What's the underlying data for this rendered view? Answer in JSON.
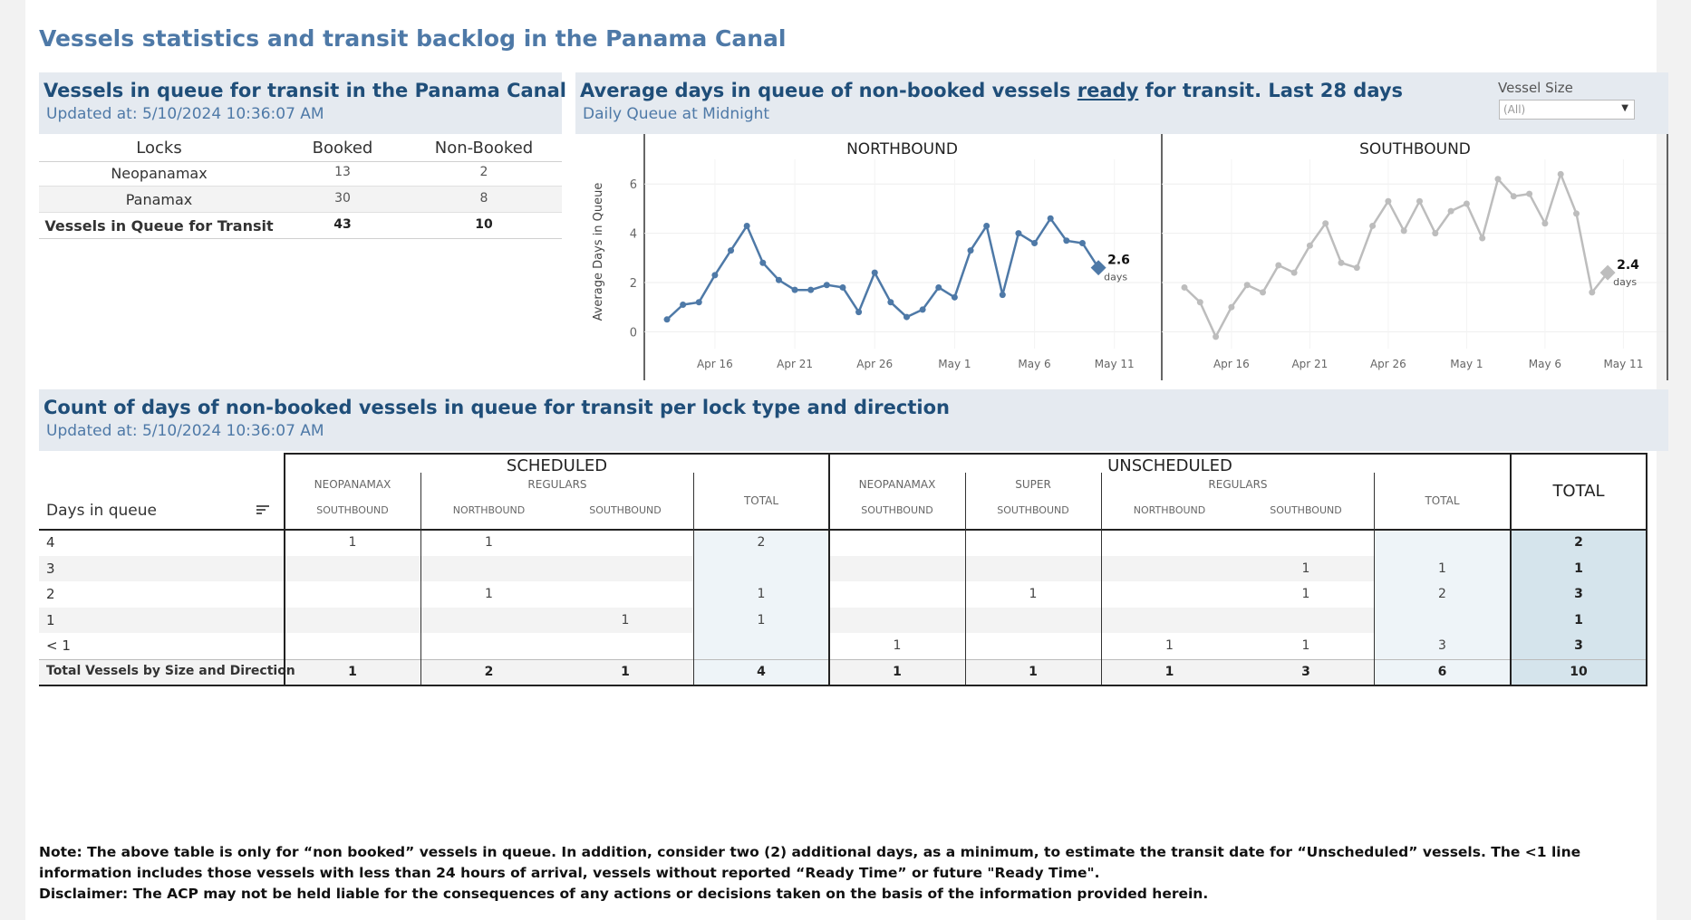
{
  "page_title": "Vessels statistics and transit backlog in the Panama Canal",
  "queue_panel": {
    "title": "Vessels in queue for transit in the Panama Canal",
    "updated_label": "Updated at:  5/10/2024 10:36:07 AM",
    "headers": [
      "Locks",
      "Booked",
      "Non-Booked"
    ],
    "rows": [
      {
        "lock": "Neopanamax",
        "booked": "13",
        "nonbooked": "2"
      },
      {
        "lock": "Panamax",
        "booked": "30",
        "nonbooked": "8"
      },
      {
        "lock": "Vessels in Queue for Transit",
        "booked": "43",
        "nonbooked": "10"
      }
    ]
  },
  "avg_panel": {
    "title_pre": "Average days in queue of non-booked vessels ",
    "title_link": "ready",
    "title_post": " for transit. Last 28 days",
    "subtitle": "Daily Queue at Midnight",
    "vessel_size_label": "Vessel Size",
    "vessel_size_value": "(All)"
  },
  "chart_data": {
    "type": "line",
    "ylabel": "Average Days in Queue",
    "ylim": [
      -0.5,
      7
    ],
    "yticks": [
      "0",
      "2",
      "4",
      "6"
    ],
    "x_ticks": [
      "Apr 16",
      "Apr 21",
      "Apr 26",
      "May 1",
      "May 6",
      "May 11"
    ],
    "series": [
      {
        "name": "NORTHBOUND",
        "color": "#4e79a7",
        "values": [
          0.5,
          1.1,
          1.2,
          2.3,
          3.3,
          4.3,
          2.8,
          2.1,
          1.7,
          1.7,
          1.9,
          1.8,
          0.8,
          2.4,
          1.2,
          0.6,
          0.9,
          1.8,
          1.4,
          3.3,
          4.3,
          1.5,
          4.0,
          3.6,
          4.6,
          3.7,
          3.6,
          2.6
        ],
        "last_label": "2.6",
        "unit_label": "days"
      },
      {
        "name": "SOUTHBOUND",
        "color": "#bdbdbd",
        "values": [
          1.8,
          1.2,
          -0.2,
          1.0,
          1.9,
          1.6,
          2.7,
          2.4,
          3.5,
          4.4,
          2.8,
          2.6,
          4.3,
          5.3,
          4.1,
          5.3,
          4.0,
          4.9,
          5.2,
          3.8,
          6.2,
          5.5,
          5.6,
          4.4,
          6.4,
          4.8,
          1.6,
          2.4
        ],
        "last_label": "2.4",
        "unit_label": "days"
      }
    ]
  },
  "count_panel": {
    "title": "Count of days of non-booked vessels in queue for transit per lock type and direction",
    "updated_label": "Updated at:  5/10/2024 10:36:07 AM",
    "row_header": "Days in queue",
    "group_scheduled": "SCHEDULED",
    "group_unscheduled": "UNSCHEDULED",
    "total_header": "TOTAL",
    "cols": [
      {
        "type": "NEOPANAMAX",
        "dir": "SOUTHBOUND"
      },
      {
        "type": "REGULARS",
        "dir": "NORTHBOUND"
      },
      {
        "type": "",
        "dir": "SOUTHBOUND"
      },
      {
        "type": "TOTAL",
        "dir": ""
      },
      {
        "type": "NEOPANAMAX",
        "dir": "SOUTHBOUND"
      },
      {
        "type": "SUPER",
        "dir": "SOUTHBOUND"
      },
      {
        "type": "REGULARS",
        "dir": "NORTHBOUND"
      },
      {
        "type": "",
        "dir": "SOUTHBOUND"
      },
      {
        "type": "TOTAL",
        "dir": ""
      }
    ],
    "rows": [
      {
        "label": "4",
        "cells": [
          "1",
          "1",
          "",
          "2",
          "",
          "",
          "",
          "",
          "",
          "2"
        ]
      },
      {
        "label": "3",
        "cells": [
          "",
          "",
          "",
          "",
          "",
          "",
          "",
          "1",
          "1",
          "1"
        ]
      },
      {
        "label": "2",
        "cells": [
          "",
          "1",
          "",
          "1",
          "",
          "1",
          "",
          "1",
          "2",
          "3"
        ]
      },
      {
        "label": "1",
        "cells": [
          "",
          "",
          "1",
          "1",
          "",
          "",
          "",
          "",
          "",
          "1"
        ]
      },
      {
        "label": "< 1",
        "cells": [
          "",
          "",
          "",
          "",
          "1",
          "",
          "1",
          "1",
          "3",
          "3"
        ]
      },
      {
        "label": "Total Vessels by Size and Direction",
        "cells": [
          "1",
          "2",
          "1",
          "4",
          "1",
          "1",
          "1",
          "3",
          "6",
          "10"
        ]
      }
    ]
  },
  "notes": {
    "line1": "Note:  The above table is only for “non booked” vessels in queue. In addition, consider two (2) additional days, as a minimum, to estimate the transit date for “Unscheduled” vessels.  The <1 line information includes those vessels with less than 24 hours of arrival, vessels without reported “Ready Time” or future \"Ready Time\".",
    "line2": "Disclaimer: The ACP may not be held liable for the consequences of any actions or decisions taken on the basis of the information provided herein."
  }
}
